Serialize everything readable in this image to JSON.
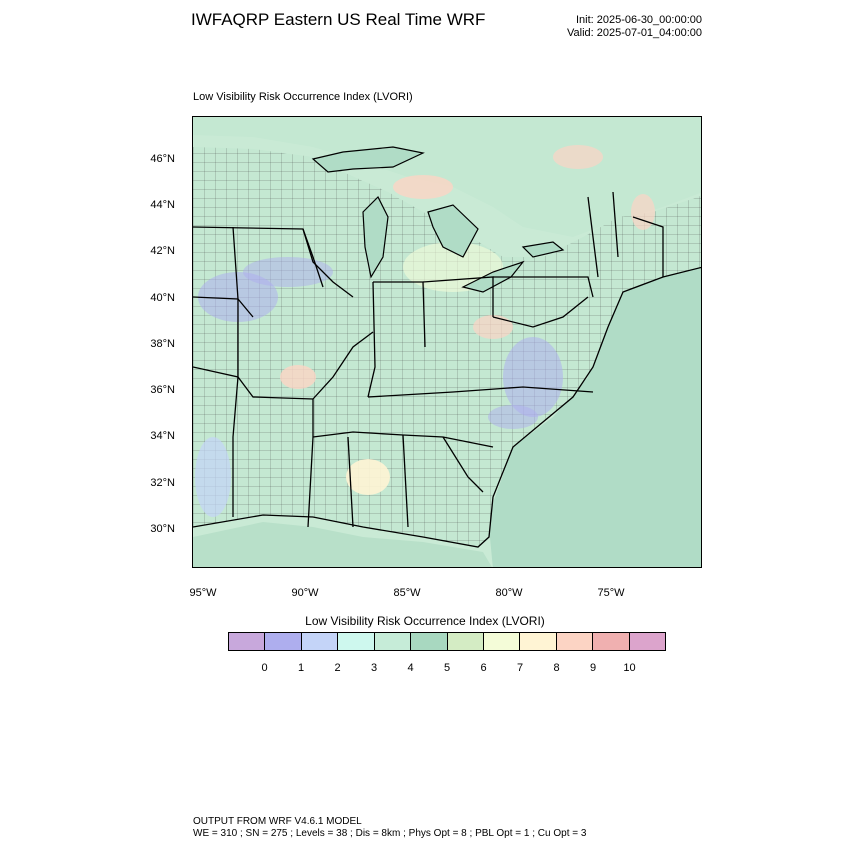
{
  "header": {
    "title": "IWFAQRP Eastern US Real Time WRF",
    "init": "Init: 2025-06-30_00:00:00",
    "valid": "Valid: 2025-07-01_04:00:00"
  },
  "map": {
    "subtitle": "Low Visibility Risk Occurrence Index   (LVORI)",
    "lat_labels": [
      "46°N",
      "44°N",
      "42°N",
      "40°N",
      "38°N",
      "36°N",
      "34°N",
      "32°N",
      "30°N"
    ],
    "lon_labels": [
      "95°W",
      "90°W",
      "85°W",
      "80°W",
      "75°W"
    ],
    "colors": {
      "land": "#c4e8d2",
      "water": "#b0dcc6",
      "outside": "#c9ead5",
      "state_borders": "#000000",
      "county_borders": "#333333"
    }
  },
  "colorbar": {
    "title": "Low Visibility Risk Occurrence Index  (LVORI)",
    "colors": [
      "#c8a8dc",
      "#aeaeee",
      "#c4d4f8",
      "#cef8ee",
      "#c6ecd8",
      "#a8d8c0",
      "#d4ecc4",
      "#f4fcd8",
      "#fff4d4",
      "#fcd4c4",
      "#f0b0b0",
      "#dca4cc"
    ],
    "labels": [
      "0",
      "1",
      "2",
      "3",
      "4",
      "5",
      "6",
      "7",
      "8",
      "9",
      "10"
    ]
  },
  "footer": {
    "line1": "OUTPUT FROM WRF V4.6.1 MODEL",
    "line2": "WE = 310 ; SN = 275 ; Levels = 38 ; Dis = 8km ; Phys Opt = 8 ; PBL Opt = 1 ; Cu Opt = 3"
  }
}
